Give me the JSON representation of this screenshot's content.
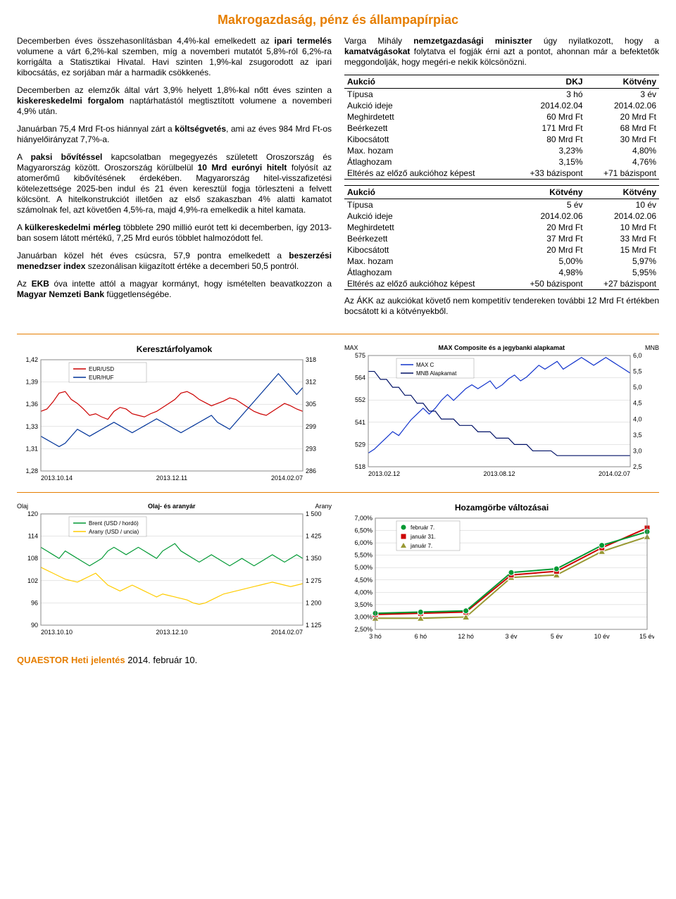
{
  "title": "Makrogazdaság, pénz és állampapírpiac",
  "left_paras": [
    {
      "text": "Decemberben éves összehasonlításban 4,4%-kal emelkedett az <b>ipari termelés</b> volumene a várt 6,2%-kal szemben, míg a novemberi mutatót 5,8%-ról 6,2%-ra korrigálta a Statisztikai Hivatal. Havi szinten 1,9%-kal zsugorodott az ipari kibocsátás, ez sorjában már a harmadik csökkenés."
    },
    {
      "text": "Decemberben az elemzők által várt 3,9% helyett 1,8%-kal nőtt éves szinten a <b>kiskereskedelmi forgalom</b> naptárhatástól megtisztított volumene a novemberi 4,9% után."
    },
    {
      "text": "Januárban 75,4 Mrd Ft-os hiánnyal zárt a <b>költségvetés</b>, ami az éves 984 Mrd Ft-os hiányelőirányzat 7,7%-a."
    },
    {
      "text": "A <b>paksi bővítéssel</b> kapcsolatban megegyezés született Oroszország és Magyarország között. Oroszország körülbelül <b>10 Mrd eurónyi hitelt</b> folyósít az atomerőmű kibővítésének érdekében. Magyarország hitel-visszafizetési kötelezettsége 2025-ben indul és 21 éven keresztül fogja törleszteni a felvett kölcsönt. A hitelkonstrukciót illetően az első szakaszban 4% alatti kamatot számolnak fel, azt követően 4,5%-ra, majd 4,9%-ra emelkedik a hitel kamata."
    },
    {
      "text": "A <b>külkereskedelmi mérleg</b> többlete 290 millió eurót tett ki decemberben, így 2013-ban sosem látott mértékű, 7,25 Mrd eurós többlet halmozódott fel."
    },
    {
      "text": "Januárban közel hét éves csúcsra, 57,9 pontra emelkedett a <b>beszerzési menedzser index</b> szezonálisan kiigazított értéke a decemberi 50,5 pontról."
    },
    {
      "text": "Az <b>EKB</b> óva intette attól a magyar kormányt, hogy ismételten beavatkozzon a <b>Magyar Nemzeti Bank</b> függetlenségébe."
    }
  ],
  "right_intro": "Varga Mihály <b>nemzetgazdasági miniszter</b> úgy nyilatkozott, hogy a <b>kamatvágásokat</b> folytatva el fogják érni azt a pontot, ahonnan már a befektetők meggondolják, hogy megéri-e nekik kölcsönözni.",
  "table1": {
    "headers": [
      "Aukció",
      "DKJ",
      "Kötvény"
    ],
    "rows": [
      [
        "Típusa",
        "3 hó",
        "3 év"
      ],
      [
        "Aukció ideje",
        "2014.02.04",
        "2014.02.06"
      ],
      [
        "Meghirdetett",
        "60 Mrd Ft",
        "20 Mrd Ft"
      ],
      [
        "Beérkezett",
        "171 Mrd Ft",
        "68 Mrd Ft"
      ],
      [
        "Kibocsátott",
        "80 Mrd Ft",
        "30 Mrd Ft"
      ],
      [
        "Max. hozam",
        "3,23%",
        "4,80%"
      ],
      [
        "Átlaghozam",
        "3,15%",
        "4,76%"
      ],
      [
        "Eltérés az előző aukcióhoz képest",
        "+33 bázispont",
        "+71 bázispont"
      ]
    ]
  },
  "table2": {
    "headers": [
      "Aukció",
      "Kötvény",
      "Kötvény"
    ],
    "rows": [
      [
        "Típusa",
        "5 év",
        "10 év"
      ],
      [
        "Aukció ideje",
        "2014.02.06",
        "2014.02.06"
      ],
      [
        "Meghirdetett",
        "20 Mrd Ft",
        "10 Mrd Ft"
      ],
      [
        "Beérkezett",
        "37 Mrd Ft",
        "33 Mrd Ft"
      ],
      [
        "Kibocsátott",
        "20 Mrd Ft",
        "15 Mrd Ft"
      ],
      [
        "Max. hozam",
        "5,00%",
        "5,97%"
      ],
      [
        "Átlaghozam",
        "4,98%",
        "5,95%"
      ],
      [
        "Eltérés az előző aukcióhoz képest",
        "+50 bázispont",
        "+27 bázispont"
      ]
    ]
  },
  "right_outro": "Az ÁKK az aukciókat követő nem kompetitív tendereken további 12 Mrd Ft értékben bocsátott ki a kötvényekből.",
  "chart1": {
    "title": "Keresztárfolyamok",
    "left_ticks": [
      "1,42",
      "1,39",
      "1,36",
      "1,33",
      "1,31",
      "1,28"
    ],
    "right_ticks": [
      "318",
      "312",
      "305",
      "299",
      "293",
      "286"
    ],
    "x_ticks": [
      "2013.10.14",
      "2013.12.11",
      "2014.02.07"
    ],
    "legend": [
      "EUR/USD",
      "EUR/HUF"
    ],
    "colors": {
      "eurusd": "#cc0000",
      "eurhuf": "#003399"
    },
    "eurusd": [
      1.355,
      1.358,
      1.367,
      1.378,
      1.38,
      1.37,
      1.365,
      1.358,
      1.35,
      1.352,
      1.348,
      1.345,
      1.355,
      1.36,
      1.358,
      1.352,
      1.35,
      1.348,
      1.352,
      1.355,
      1.36,
      1.365,
      1.37,
      1.378,
      1.38,
      1.376,
      1.37,
      1.366,
      1.362,
      1.365,
      1.368,
      1.372,
      1.37,
      1.365,
      1.36,
      1.355,
      1.352,
      1.35,
      1.355,
      1.36,
      1.365,
      1.362,
      1.358,
      1.355
    ],
    "eurhuf": [
      296,
      295,
      294,
      293,
      294,
      296,
      298,
      297,
      296,
      297,
      298,
      299,
      300,
      299,
      298,
      297,
      298,
      299,
      300,
      301,
      300,
      299,
      298,
      297,
      298,
      299,
      300,
      301,
      302,
      300,
      299,
      298,
      300,
      302,
      304,
      306,
      308,
      310,
      312,
      314,
      312,
      310,
      308,
      310
    ],
    "ylim_left": [
      1.28,
      1.42
    ],
    "ylim_right": [
      286,
      318
    ]
  },
  "chart2": {
    "title": "MAX Composite és a jegybanki alapkamat",
    "left_label": "MAX",
    "right_label": "MNB",
    "left_ticks": [
      "575",
      "564",
      "552",
      "541",
      "529",
      "518"
    ],
    "right_ticks": [
      "6,0",
      "5,5",
      "5,0",
      "4,5",
      "4,0",
      "3,5",
      "3,0",
      "2,5"
    ],
    "x_ticks": [
      "2013.02.12",
      "2013.08.12",
      "2014.02.07"
    ],
    "legend": [
      "MAX C",
      "MNB Alapkamat"
    ],
    "colors": {
      "maxc": "#1133cc",
      "mnb": "#001166"
    },
    "maxc": [
      525,
      527,
      530,
      533,
      536,
      534,
      538,
      542,
      545,
      548,
      545,
      548,
      552,
      555,
      552,
      555,
      558,
      560,
      558,
      560,
      562,
      558,
      560,
      563,
      565,
      562,
      564,
      567,
      570,
      568,
      570,
      572,
      568,
      570,
      572,
      574,
      572,
      570,
      572,
      574,
      572,
      570,
      568,
      566
    ],
    "mnb": [
      5.5,
      5.5,
      5.25,
      5.25,
      5.0,
      5.0,
      4.75,
      4.75,
      4.5,
      4.5,
      4.25,
      4.25,
      4.0,
      4.0,
      4.0,
      3.8,
      3.8,
      3.8,
      3.6,
      3.6,
      3.6,
      3.4,
      3.4,
      3.4,
      3.2,
      3.2,
      3.2,
      3.0,
      3.0,
      3.0,
      3.0,
      2.85,
      2.85,
      2.85,
      2.85,
      2.85,
      2.85,
      2.85,
      2.85,
      2.85,
      2.85,
      2.85,
      2.85,
      2.85
    ],
    "ylim_left": [
      518,
      575
    ],
    "ylim_right": [
      2.5,
      6.0
    ]
  },
  "chart3": {
    "title": "Olaj- és aranyár",
    "left_label": "Olaj",
    "right_label": "Arany",
    "left_ticks": [
      "120",
      "114",
      "108",
      "102",
      "96",
      "90"
    ],
    "right_ticks": [
      "1 500",
      "1 425",
      "1 350",
      "1 275",
      "1 200",
      "1 125"
    ],
    "x_ticks": [
      "2013.10.10",
      "2013.12.10",
      "2014.02.07"
    ],
    "legend": [
      "Brent (USD / hordó)",
      "Arany (USD / uncia)"
    ],
    "colors": {
      "brent": "#009933",
      "gold": "#ffcc00"
    },
    "brent": [
      111,
      110,
      109,
      108,
      110,
      109,
      108,
      107,
      106,
      107,
      108,
      110,
      111,
      110,
      109,
      110,
      111,
      110,
      109,
      108,
      110,
      111,
      112,
      110,
      109,
      108,
      107,
      108,
      109,
      108,
      107,
      106,
      107,
      108,
      107,
      106,
      107,
      108,
      109,
      108,
      107,
      108,
      109,
      108
    ],
    "gold": [
      1320,
      1310,
      1300,
      1290,
      1280,
      1275,
      1270,
      1280,
      1290,
      1300,
      1280,
      1260,
      1250,
      1240,
      1250,
      1260,
      1250,
      1240,
      1230,
      1220,
      1230,
      1225,
      1220,
      1215,
      1210,
      1200,
      1195,
      1200,
      1210,
      1220,
      1230,
      1235,
      1240,
      1245,
      1250,
      1255,
      1260,
      1265,
      1270,
      1265,
      1260,
      1255,
      1260,
      1265
    ],
    "ylim_left": [
      90,
      120
    ],
    "ylim_right": [
      1125,
      1500
    ]
  },
  "chart4": {
    "title": "Hozamgörbe változásai",
    "y_ticks": [
      "7,00%",
      "6,50%",
      "6,00%",
      "5,50%",
      "5,00%",
      "4,50%",
      "4,00%",
      "3,50%",
      "3,00%",
      "2,50%"
    ],
    "x_labels": [
      "3 hó",
      "6 hó",
      "12 hó",
      "3 év",
      "5 év",
      "10 év",
      "15 év"
    ],
    "legend": [
      "február 7.",
      "január 31.",
      "január 7."
    ],
    "colors": {
      "feb7": "#009933",
      "jan31": "#cc0000",
      "jan7": "#999933"
    },
    "feb7": [
      3.15,
      3.2,
      3.25,
      4.8,
      4.95,
      5.9,
      6.45
    ],
    "jan31": [
      3.1,
      3.15,
      3.2,
      4.7,
      4.85,
      5.8,
      6.6
    ],
    "jan7": [
      2.95,
      2.95,
      3.0,
      4.6,
      4.7,
      5.65,
      6.25
    ],
    "ylim": [
      2.5,
      7.0
    ]
  },
  "footer": {
    "brand": "QUAESTOR Heti jelentés",
    "date": " 2014. február 10."
  }
}
